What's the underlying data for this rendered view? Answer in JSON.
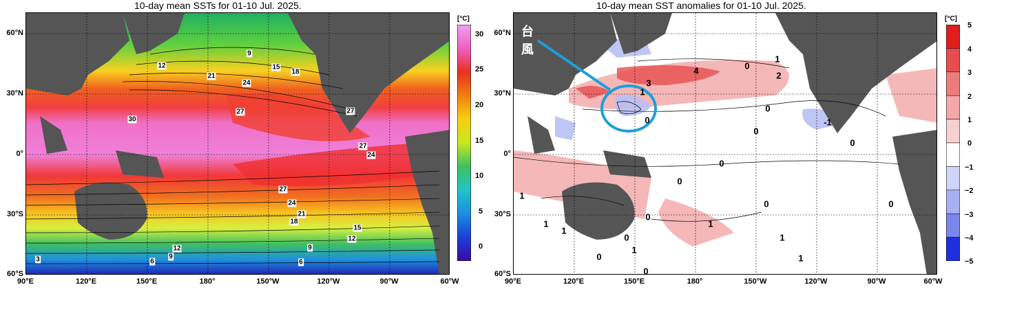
{
  "left_panel": {
    "title": "10-day mean SSTs for 01-10 Jul. 2025.",
    "colorbar": {
      "unit": "[°C]",
      "ticks": [
        "30",
        "25",
        "20",
        "15",
        "10",
        "5",
        "0"
      ]
    },
    "contour_labels": [
      "9",
      "12",
      "15",
      "18",
      "21",
      "24",
      "27",
      "27",
      "30",
      "27",
      "24",
      "27",
      "24",
      "21",
      "18",
      "15",
      "12",
      "12",
      "9",
      "9",
      "6",
      "6",
      "3"
    ]
  },
  "right_panel": {
    "title": "10-day mean SST anomalies for 01-10 Jul. 2025.",
    "colorbar": {
      "unit": "[°C]",
      "ticks": [
        "5",
        "4",
        "3",
        "2",
        "1",
        "0",
        "−1",
        "−2",
        "−3",
        "−4",
        "−5"
      ]
    },
    "annotation": "台風",
    "contour_labels": [
      "1",
      "0",
      "4",
      "2",
      "3",
      "1",
      "0",
      "0",
      "-1",
      "0",
      "0",
      "0",
      "0",
      "0",
      "0",
      "1",
      "1",
      "1",
      "0",
      "1",
      "0",
      "1",
      "0",
      "1",
      "1",
      "0"
    ]
  },
  "axes": {
    "lat_labels": [
      "60°N",
      "30°N",
      "0°",
      "30°S",
      "60°S"
    ],
    "lon_labels": [
      "90°E",
      "120°E",
      "150°E",
      "180°",
      "150°W",
      "120°W",
      "90°W",
      "60°W"
    ]
  },
  "colors": {
    "land": "#555555",
    "sst_scale": [
      "#3a0aa8",
      "#1c3fd8",
      "#1e8ee0",
      "#1fc4c8",
      "#20c070",
      "#7ad84a",
      "#c8e820",
      "#f8f020",
      "#f8c010",
      "#f08010",
      "#e83020",
      "#f060c0",
      "#f0a0f0"
    ],
    "anom_scale": [
      "#1e2ee0",
      "#4a5ae8",
      "#7a86ee",
      "#a8b0f4",
      "#d0d4f8",
      "#ffffff",
      "#f8d0d0",
      "#f4a8a8",
      "#ee7c7c",
      "#e84c4c",
      "#e01e1e"
    ],
    "annotation_circle": "#1aa0d8"
  }
}
